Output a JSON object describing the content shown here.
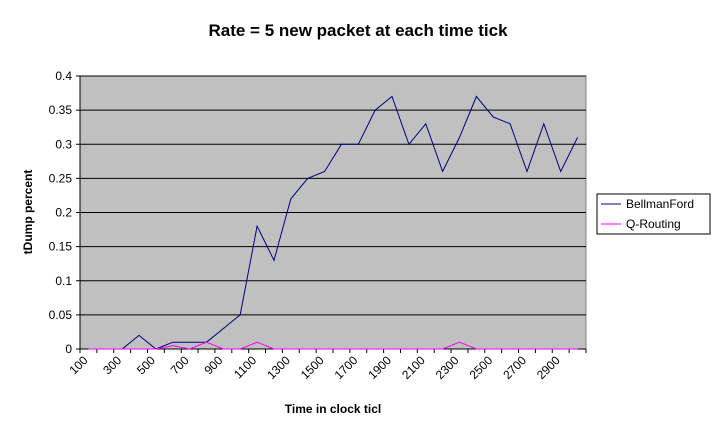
{
  "chart_data": {
    "type": "line",
    "title": "Rate = 5 new packet at each time tick",
    "xlabel": "Time in clock ticl",
    "ylabel": "tDump percent",
    "x": [
      100,
      200,
      300,
      400,
      500,
      600,
      700,
      800,
      900,
      1000,
      1100,
      1200,
      1300,
      1400,
      1500,
      1600,
      1700,
      1800,
      1900,
      2000,
      2100,
      2200,
      2300,
      2400,
      2500,
      2600,
      2700,
      2800,
      2900,
      3000
    ],
    "x_tick_labels": [
      "100",
      "300",
      "500",
      "700",
      "900",
      "1100",
      "1300",
      "1500",
      "1700",
      "1900",
      "2100",
      "2300",
      "2500",
      "2700",
      "2900"
    ],
    "y_tick_labels": [
      "0",
      "0.05",
      "0.1",
      "0.15",
      "0.2",
      "0.25",
      "0.3",
      "0.35",
      "0.4"
    ],
    "ylim": [
      0,
      0.4
    ],
    "grid": true,
    "legend_position": "right",
    "series": [
      {
        "name": "BellmanFord",
        "color": "#000080",
        "values": [
          0,
          0,
          0,
          0.02,
          0,
          0.01,
          0.01,
          0.01,
          0.03,
          0.05,
          0.18,
          0.13,
          0.22,
          0.25,
          0.26,
          0.3,
          0.3,
          0.35,
          0.37,
          0.3,
          0.33,
          0.26,
          0.31,
          0.37,
          0.34,
          0.33,
          0.26,
          0.33,
          0.26,
          0.31
        ]
      },
      {
        "name": "Q-Routing",
        "color": "#ff00ff",
        "values": [
          0,
          0,
          0,
          0,
          0,
          0.005,
          0,
          0.01,
          0,
          0,
          0.01,
          0,
          0,
          0,
          0,
          0,
          0,
          0,
          0,
          0,
          0,
          0,
          0.01,
          0,
          0,
          0,
          0,
          0,
          0,
          0
        ]
      }
    ]
  }
}
